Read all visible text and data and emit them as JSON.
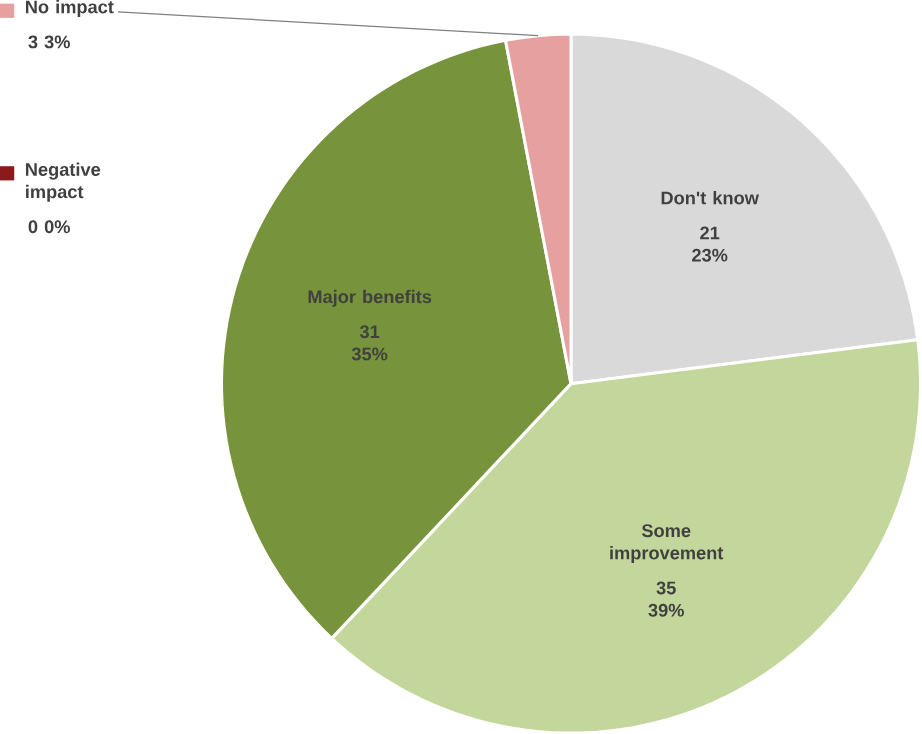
{
  "chart_data": {
    "type": "pie",
    "categories": [
      "Don't know",
      "Some improvement",
      "Major benefits",
      "Negative impact",
      "No impact"
    ],
    "values": [
      23,
      39,
      35,
      0,
      3
    ],
    "colors": [
      "#d9d9d9",
      "#c3d69b",
      "#77933c",
      "#8b1a1a",
      "#e6a0a0"
    ],
    "value_labels": [
      "21 23%",
      "35 39%",
      "31 35%",
      "0 0%",
      "3 3%"
    ]
  }
}
